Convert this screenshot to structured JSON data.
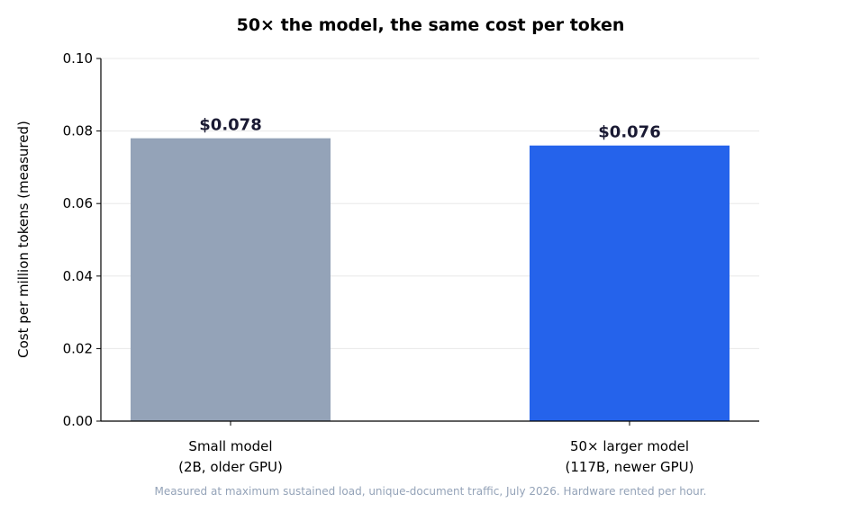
{
  "chart_data": {
    "type": "bar",
    "title": "50× the model, the same cost per token",
    "ylabel": "Cost per million tokens (measured)",
    "xlabel": "",
    "ylim": [
      0,
      0.1
    ],
    "yticks": [
      "0.00",
      "0.02",
      "0.04",
      "0.06",
      "0.08",
      "0.10"
    ],
    "grid": "horizontal",
    "categories": [
      [
        "Small model",
        "(2B, older GPU)"
      ],
      [
        "50× larger model",
        "(117B, newer GPU)"
      ]
    ],
    "values": [
      0.078,
      0.076
    ],
    "data_labels": [
      "$0.078",
      "$0.076"
    ],
    "colors": [
      "#94a3b8",
      "#2563eb"
    ],
    "footnote": "Measured at maximum sustained load, unique-document traffic, July 2026. Hardware rented per hour."
  }
}
